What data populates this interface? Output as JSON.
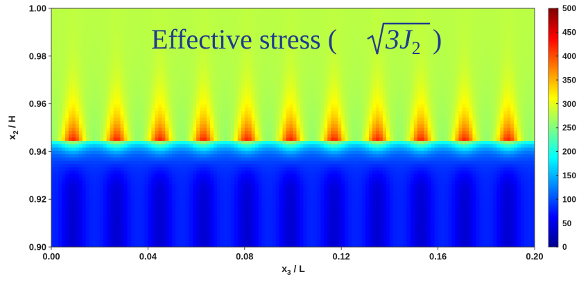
{
  "chart_data": {
    "type": "heatmap",
    "title_prefix": "Effective stress (",
    "title_math": "3J",
    "title_sub": "2",
    "title_suffix": ")",
    "xlabel": "x",
    "xlabel_sub": "3",
    "xlabel_suffix": " / L",
    "ylabel": "x",
    "ylabel_sub": "2",
    "ylabel_suffix": " / H",
    "xlim": [
      0.0,
      0.2
    ],
    "ylim": [
      0.9,
      1.0
    ],
    "xticks": [
      "0.00",
      "0.04",
      "0.08",
      "0.12",
      "0.16",
      "0.20"
    ],
    "yticks": [
      "0.90",
      "0.92",
      "0.94",
      "0.96",
      "0.98",
      "1.00"
    ],
    "colorbar_range": [
      0,
      500
    ],
    "colorbar_ticks": [
      "0",
      "50",
      "100",
      "150",
      "200",
      "250",
      "300",
      "350",
      "400",
      "450",
      "500"
    ],
    "colormap": "jet",
    "interface_y": 0.945,
    "period_x": 0.018,
    "hotspot_count": 11,
    "regions": [
      {
        "name": "upper layer background",
        "value": 280
      },
      {
        "name": "lower layer background",
        "value": 80
      },
      {
        "name": "hotspot peak above interface",
        "value": 420
      }
    ]
  }
}
